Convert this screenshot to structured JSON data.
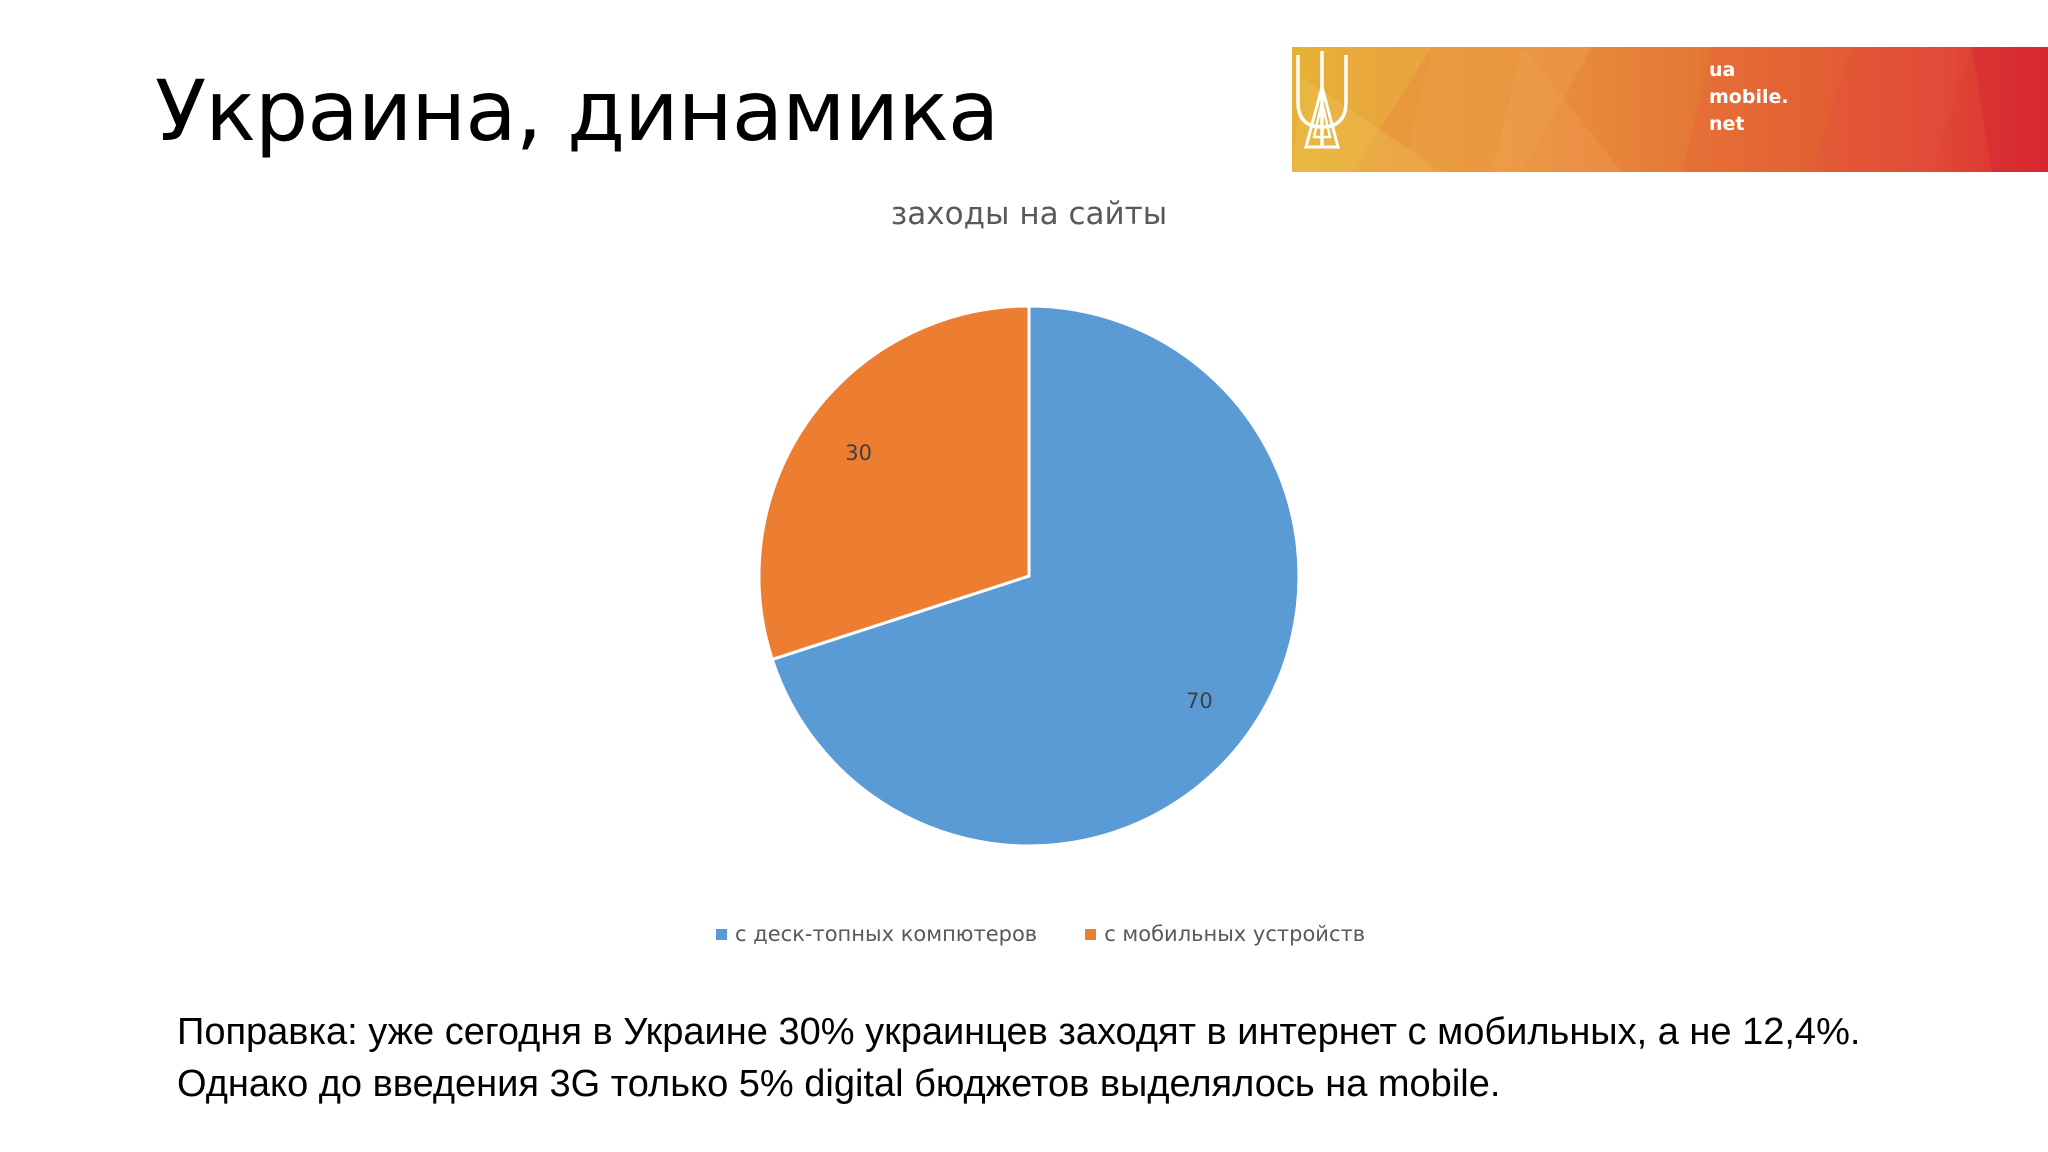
{
  "slide": {
    "title": "Украина, динамика"
  },
  "banner": {
    "logo_lines": [
      "ua",
      "mobile.",
      "net"
    ],
    "logo_icon": "ua-mobile-logo-icon"
  },
  "chart_data": {
    "type": "pie",
    "title": "заходы на сайты",
    "slices": [
      {
        "name": "с деск-топных компютеров",
        "value": 70,
        "color": "#5b9bd5"
      },
      {
        "name": "с мобильных устройств",
        "value": 30,
        "color": "#ed7d31"
      }
    ],
    "legend_position": "bottom"
  },
  "note": {
    "line1": "Поправка: уже сегодня в Украине 30% украинцев заходят в интернет с мобильных, а не 12,4%.",
    "line2": "Однако до введения 3G только 5% digital бюджетов выделялось на mobile."
  }
}
